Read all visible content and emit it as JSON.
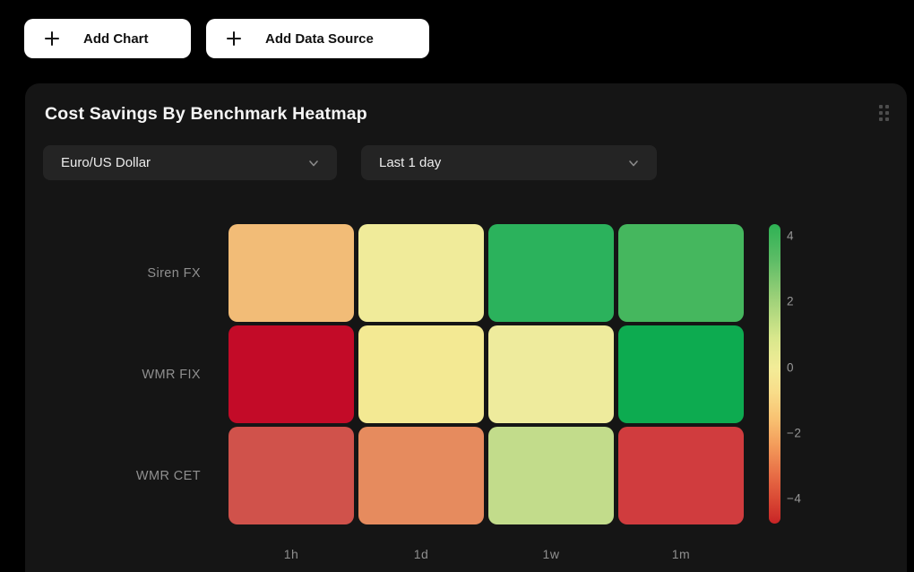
{
  "toolbar": {
    "add_chart_label": "Add Chart",
    "add_data_source_label": "Add Data Source"
  },
  "card": {
    "title": "Cost Savings By Benchmark Heatmap",
    "filters": {
      "currency_pair": "Euro/US Dollar",
      "time_range": "Last 1 day"
    }
  },
  "chart_data": {
    "type": "heatmap",
    "title": "Cost Savings By Benchmark Heatmap",
    "rows": [
      "Siren FX",
      "WMR FIX",
      "WMR CET"
    ],
    "columns": [
      "1h",
      "1d",
      "1w",
      "1m"
    ],
    "values": [
      [
        -1.3,
        0.4,
        3.8,
        3.4
      ],
      [
        -4.5,
        0.3,
        0.6,
        4.1
      ],
      [
        -3.0,
        -2.0,
        1.4,
        -3.2
      ]
    ],
    "cell_colors": [
      [
        "#f2bc77",
        "#f0eb9a",
        "#2bb25c",
        "#45b75e"
      ],
      [
        "#c30b28",
        "#f3e993",
        "#eeeb9d",
        "#0dab50"
      ],
      [
        "#d0524b",
        "#e68b5e",
        "#c2dc8b",
        "#d03c3e"
      ]
    ],
    "colorbar": {
      "ticks": [
        4,
        2,
        0,
        -2,
        -4
      ],
      "min": -4.75,
      "max": 4.35,
      "gradient_stops": [
        {
          "pos": 0,
          "color": "#2eb254"
        },
        {
          "pos": 12,
          "color": "#5dbc66"
        },
        {
          "pos": 25,
          "color": "#9ed179"
        },
        {
          "pos": 38,
          "color": "#d8e78c"
        },
        {
          "pos": 48,
          "color": "#f3ec98"
        },
        {
          "pos": 56,
          "color": "#f8dd8a"
        },
        {
          "pos": 65,
          "color": "#f8c272"
        },
        {
          "pos": 74,
          "color": "#f39b5a"
        },
        {
          "pos": 84,
          "color": "#e76c45"
        },
        {
          "pos": 93,
          "color": "#d74432"
        },
        {
          "pos": 100,
          "color": "#c82426"
        }
      ],
      "position": "right"
    },
    "grid": false
  },
  "colors": {
    "page_bg": "#000000",
    "card_bg": "#151515",
    "dropdown_bg": "#242424",
    "button_bg": "#ffffff",
    "label_gray": "#8f8f8f"
  }
}
